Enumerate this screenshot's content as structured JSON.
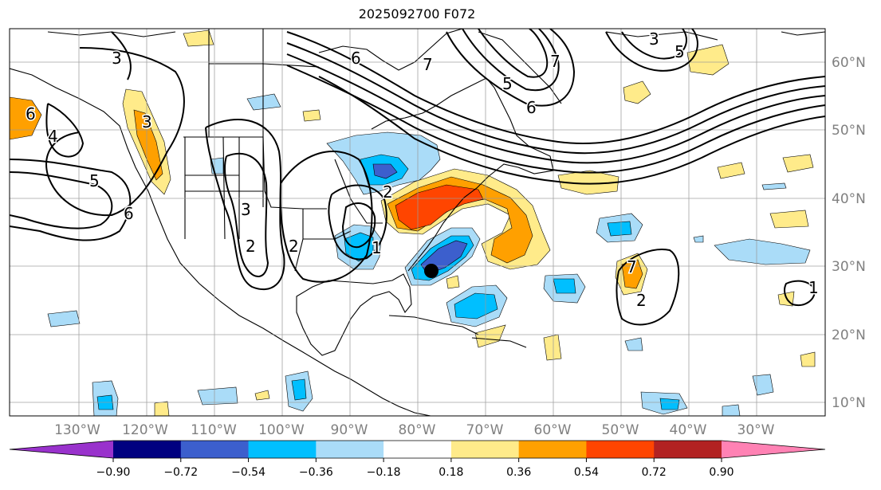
{
  "title": "2025092700 F072",
  "lat_labels": [
    "60°N",
    "50°N",
    "40°N",
    "30°N",
    "20°N",
    "10°N"
  ],
  "lon_labels": [
    "130°W",
    "120°W",
    "110°W",
    "100°W",
    "90°W",
    "80°W",
    "70°W",
    "60°W",
    "50°W",
    "40°W",
    "30°W"
  ],
  "colorbar": {
    "colors": [
      "#9932cc",
      "#000080",
      "#3c5fcd",
      "#00bfff",
      "#aadcf8",
      "#ffffff",
      "#ffeb8a",
      "#ffa000",
      "#ff4500",
      "#b22222",
      "#ff82b4"
    ],
    "ticks": [
      "−0.90",
      "−0.72",
      "−0.54",
      "−0.36",
      "−0.18",
      "0.18",
      "0.36",
      "0.54",
      "0.72",
      "0.90"
    ]
  },
  "contour_labels": [
    "3",
    "6",
    "4",
    "6",
    "3",
    "5",
    "6",
    "7",
    "5",
    "6",
    "3",
    "5",
    "7",
    "3",
    "2",
    "2",
    "1",
    "2",
    "7",
    "2",
    "1"
  ]
}
